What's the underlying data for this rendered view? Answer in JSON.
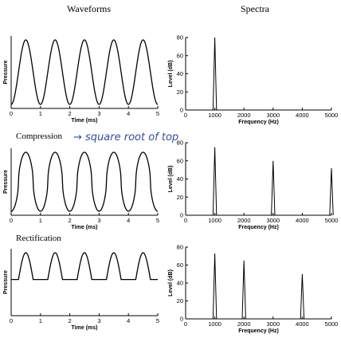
{
  "columns": {
    "left_title": "Waveforms",
    "right_title": "Spectra"
  },
  "rows": [
    {
      "title": "",
      "note": ""
    },
    {
      "title": "Compression",
      "note": "→ square root of top"
    },
    {
      "title": "Rectification",
      "note": ""
    }
  ],
  "chart_data": [
    {
      "type": "line",
      "panel": "waveform-sine",
      "title": "",
      "xlabel": "Time (ms)",
      "ylabel": "Pressure",
      "xlim": [
        0,
        5
      ],
      "xticks": [
        "0",
        "1",
        "2",
        "3",
        "4",
        "5"
      ],
      "signal": {
        "kind": "sine",
        "frequency_hz": 1000,
        "cycles_shown": 5
      }
    },
    {
      "type": "bar",
      "panel": "spectrum-sine",
      "title": "",
      "xlabel": "Frequency (Hz)",
      "ylabel": "Level (dB)",
      "xlim": [
        0,
        5000
      ],
      "ylim": [
        0,
        80
      ],
      "xticks": [
        "0",
        "1000",
        "2000",
        "3000",
        "4000",
        "5000"
      ],
      "yticks": [
        "0",
        "20",
        "40",
        "60",
        "80"
      ],
      "x": [
        1000
      ],
      "values": [
        80
      ]
    },
    {
      "type": "line",
      "panel": "waveform-compression",
      "title": "Compression",
      "xlabel": "Time (ms)",
      "ylabel": "Pressure",
      "xlim": [
        0,
        5
      ],
      "xticks": [
        "0",
        "1",
        "2",
        "3",
        "4",
        "5"
      ],
      "signal": {
        "kind": "compressed-sine",
        "frequency_hz": 1000,
        "cycles_shown": 5
      }
    },
    {
      "type": "bar",
      "panel": "spectrum-compression",
      "title": "",
      "xlabel": "Frequency (Hz)",
      "ylabel": "Level (dB)",
      "xlim": [
        0,
        5000
      ],
      "ylim": [
        0,
        80
      ],
      "xticks": [
        "0",
        "1000",
        "2000",
        "3000",
        "4000",
        "5000"
      ],
      "yticks": [
        "0",
        "20",
        "40",
        "60",
        "80"
      ],
      "x": [
        1000,
        3000,
        5000
      ],
      "values": [
        75,
        60,
        52
      ]
    },
    {
      "type": "line",
      "panel": "waveform-rectification",
      "title": "Rectification",
      "xlabel": "Time (ms)",
      "ylabel": "Pressure",
      "xlim": [
        0,
        5
      ],
      "xticks": [
        "0",
        "1",
        "2",
        "3",
        "4",
        "5"
      ],
      "signal": {
        "kind": "half-wave-rectified-sine",
        "frequency_hz": 1000,
        "cycles_shown": 5
      }
    },
    {
      "type": "bar",
      "panel": "spectrum-rectification",
      "title": "",
      "xlabel": "Frequency (Hz)",
      "ylabel": "Level (dB)",
      "xlim": [
        0,
        5000
      ],
      "ylim": [
        0,
        80
      ],
      "xticks": [
        "0",
        "1000",
        "2000",
        "3000",
        "4000",
        "5000"
      ],
      "yticks": [
        "0",
        "20",
        "40",
        "60",
        "80"
      ],
      "x": [
        1000,
        2000,
        4000
      ],
      "values": [
        73,
        65,
        50
      ]
    }
  ]
}
